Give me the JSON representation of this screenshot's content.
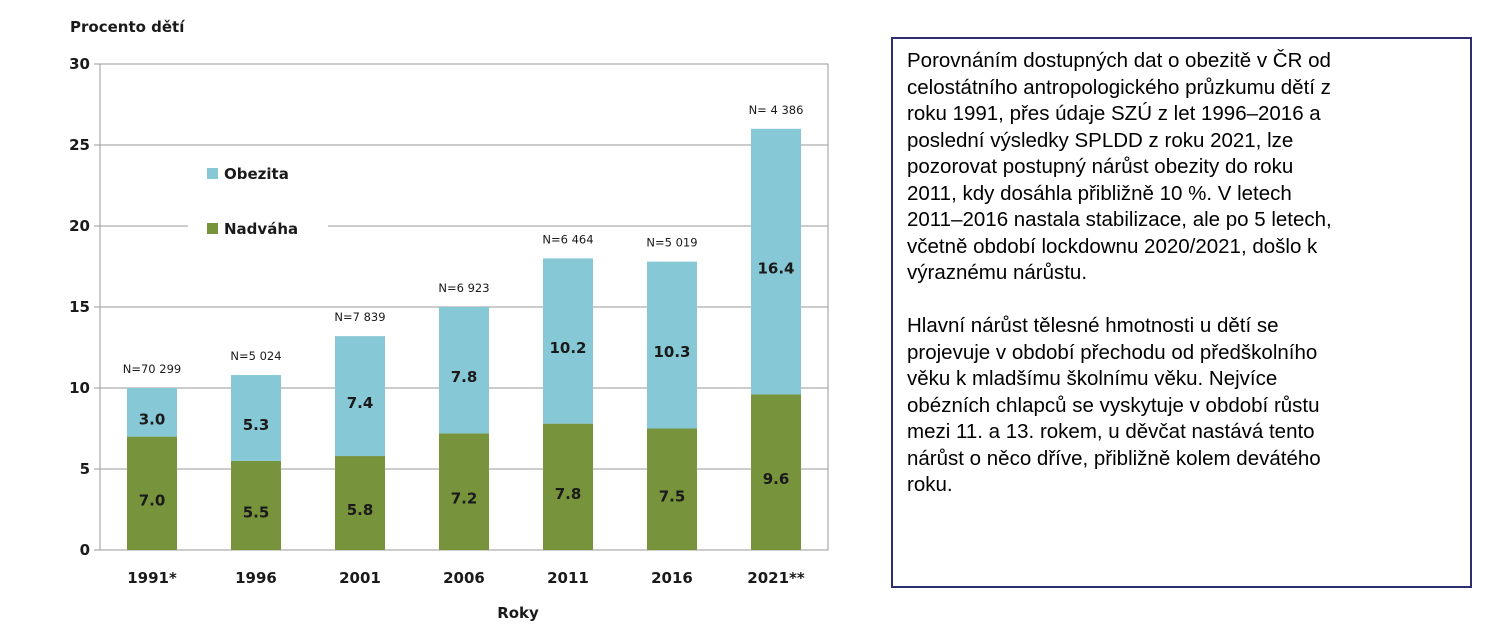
{
  "chart_data": {
    "type": "bar",
    "stacked": true,
    "ylabel": "Procento dětí",
    "xlabel": "Roky",
    "ylim": [
      0,
      30
    ],
    "yticks": [
      0,
      5,
      10,
      15,
      20,
      25,
      30
    ],
    "categories": [
      "1991*",
      "1996",
      "2001",
      "2006",
      "2011",
      "2016",
      "2021**"
    ],
    "sample_sizes": [
      "N=70 299",
      "N=5 024",
      "N=7 839",
      "N=6 923",
      "N=6 464",
      "N=5 019",
      "N= 4 386"
    ],
    "series": [
      {
        "name": "Nadváha",
        "color": "#77933c",
        "values": [
          7.0,
          5.5,
          5.8,
          7.2,
          7.8,
          7.5,
          9.6
        ]
      },
      {
        "name": "Obezita",
        "color": "#86c8d6",
        "values": [
          3.0,
          5.3,
          7.4,
          7.8,
          10.2,
          10.3,
          16.4
        ]
      }
    ],
    "gridlines": true,
    "legend_position": "top-left"
  },
  "text_panel": {
    "paragraphs": [
      [
        "Porovnáním dostupných dat o obezitě v ČR od",
        "celostátního antropologického průzkumu dětí z",
        "roku 1991, přes údaje SZÚ z let 1996–2016 a",
        "poslední výsledky SPLDD z roku 2021, lze",
        "pozorovat postupný nárůst obezity do roku",
        "2011, kdy dosáhla přibližně 10 %. V letech",
        "2011–2016 nastala stabilizace, ale po 5 letech,",
        "včetně období lockdownu 2020/2021, došlo k",
        "výraznému nárůstu."
      ],
      [
        "Hlavní nárůst tělesné hmotnosti u dětí se",
        "projevuje v období přechodu od předškolního",
        "věku k mladšímu školnímu věku. Nejvíce",
        "obézních chlapců se vyskytuje v období růstu",
        "mezi 11. a 13. rokem, u děvčat nastává tento",
        "nárůst o něco dříve, přibližně kolem devátého",
        "roku."
      ]
    ]
  }
}
